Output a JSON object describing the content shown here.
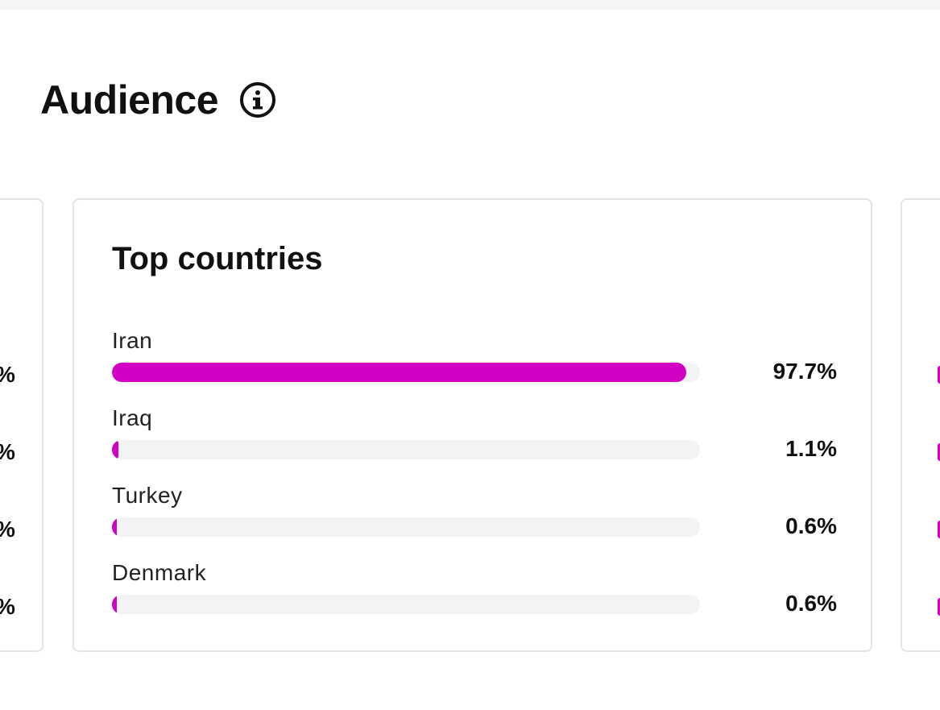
{
  "section": {
    "title": "Audience",
    "info_icon": "info-circle-icon"
  },
  "top_countries": {
    "title": "Top countries",
    "accent_color": "#d100c4",
    "track_color": "#f1f3f5",
    "rows": [
      {
        "label": "Iran",
        "value": "97.7%",
        "fraction": 0.977
      },
      {
        "label": "Iraq",
        "value": "1.1%",
        "fraction": 0.011
      },
      {
        "label": "Turkey",
        "value": "0.6%",
        "fraction": 0.006
      },
      {
        "label": "Denmark",
        "value": "0.6%",
        "fraction": 0.006
      }
    ]
  },
  "left_card_fragment": [
    "%",
    "%",
    "%",
    "%"
  ]
}
